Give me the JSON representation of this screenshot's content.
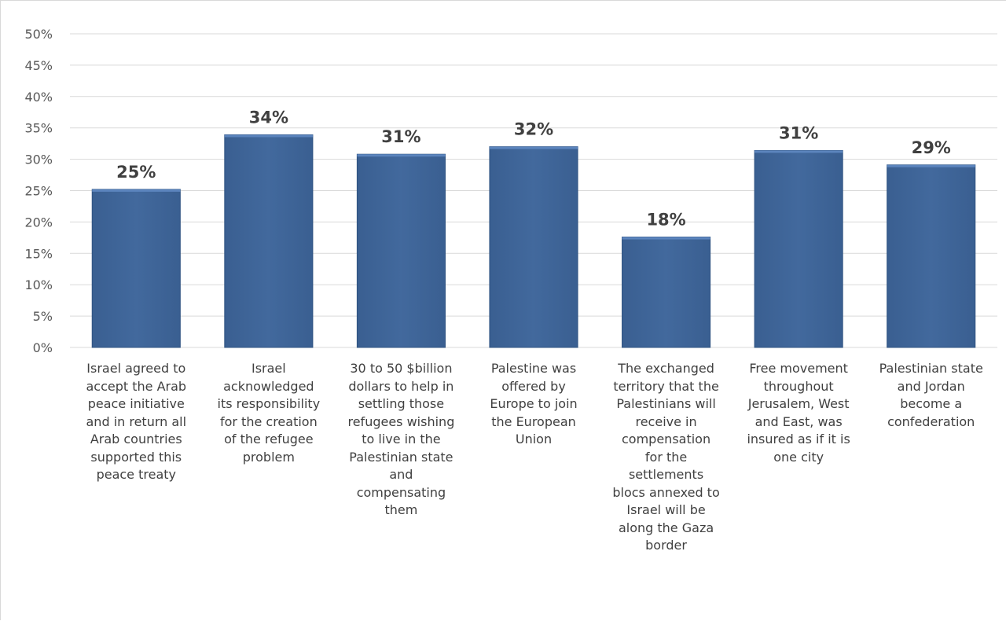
{
  "chart_data": {
    "type": "bar",
    "title": "",
    "xlabel": "",
    "ylabel": "",
    "ylim": [
      0,
      50
    ],
    "ytick_step": 5,
    "y_tick_labels": [
      "0%",
      "5%",
      "10%",
      "15%",
      "20%",
      "25%",
      "30%",
      "35%",
      "40%",
      "45%",
      "50%"
    ],
    "grid": true,
    "legend": "none",
    "categories": [
      "Israel agreed to\naccept the Arab\npeace initiative\nand in return all\nArab countries\nsupported this\npeace treaty",
      "Israel\nacknowledged\nits responsibility\nfor the creation\nof the refugee\nproblem",
      "30 to 50 $billion\ndollars to help in\nsettling those\nrefugees wishing\nto live in the\nPalestinian state\nand\ncompensating\nthem",
      "Palestine was\noffered by\nEurope to join\nthe European\nUnion",
      "The exchanged\nterritory that the\nPalestinians will\nreceive in\ncompensation\nfor the\nsettlements\nblocs annexed to\nIsrael will be\nalong the Gaza\nborder",
      "Free movement\nthroughout\nJerusalem, West\nand East, was\ninsured as if it is\none city",
      "Palestinian state\nand Jordan\nbecome a\nconfederation"
    ],
    "values": [
      25.2,
      33.9,
      30.8,
      32.0,
      17.6,
      31.4,
      29.1
    ],
    "data_labels": [
      "25%",
      "34%",
      "31%",
      "32%",
      "18%",
      "31%",
      "29%"
    ],
    "colors": {
      "bar": "#41689c",
      "bar_top": "#5b84bd",
      "bar_edge": "#2f5381",
      "grid": "#d9d9d9"
    }
  }
}
